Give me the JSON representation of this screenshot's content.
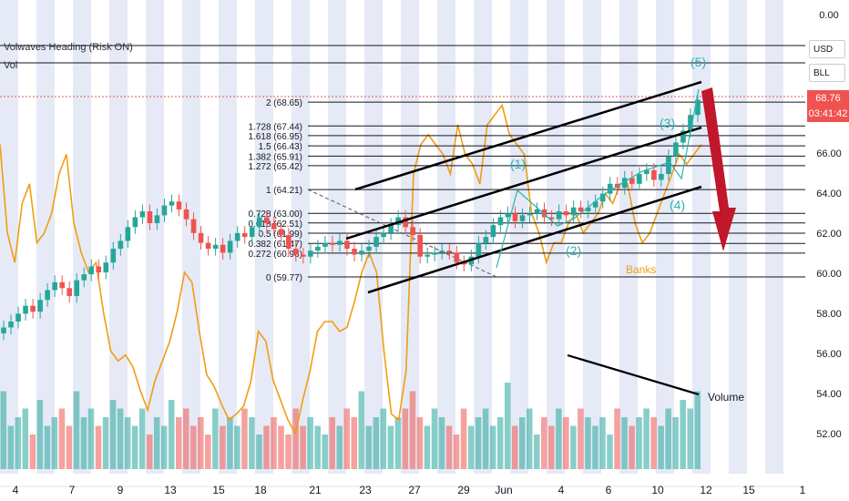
{
  "indicators": {
    "heading": "Volwaves Heading (Risk ON)",
    "vol": "Vol"
  },
  "axis_chips": {
    "currency": "USD",
    "symbol": "BLL"
  },
  "last_price": {
    "price": "68.76",
    "countdown": "03:41:42"
  },
  "colors": {
    "up": "#26a69a",
    "down": "#ef5350",
    "orange": "#f39c12",
    "wave": "#2ab5b0",
    "arrow": "#c0172a",
    "band": "#c7d1ec",
    "bg": "#ffffff"
  },
  "annotations": {
    "banks": "Banks",
    "volume": "Volume",
    "waves": [
      "(1)",
      "(2)",
      "(3)",
      "(4)",
      "(5)"
    ]
  },
  "chart_data": {
    "type": "candlestick",
    "y_ticks": [
      "0.00",
      "66.00",
      "64.00",
      "62.00",
      "60.00",
      "58.00",
      "56.00",
      "54.00",
      "52.00"
    ],
    "x_ticks": [
      "4",
      "7",
      "9",
      "13",
      "15",
      "18",
      "21",
      "23",
      "27",
      "29",
      "Jun",
      "4",
      "6",
      "10",
      "12",
      "15",
      "1"
    ],
    "fib_levels": [
      {
        "label": "2 (68.65)",
        "price": 68.65
      },
      {
        "label": "1.728 (67.44)",
        "price": 67.44
      },
      {
        "label": "1.618 (66.95)",
        "price": 66.95
      },
      {
        "label": "1.5 (66.43)",
        "price": 66.43
      },
      {
        "label": "1.382 (65.91)",
        "price": 65.91
      },
      {
        "label": "1.272 (65.42)",
        "price": 65.42
      },
      {
        "label": "1 (64.21)",
        "price": 64.21
      },
      {
        "label": "0.728 (63.00)",
        "price": 63.0
      },
      {
        "label": "0.618 (62.51)",
        "price": 62.51
      },
      {
        "label": "0.5 (61.99)",
        "price": 61.99
      },
      {
        "label": "0.382 (61.47)",
        "price": 61.47
      },
      {
        "label": "0.272 (60.98)",
        "price": 60.98
      },
      {
        "label": "0 (59.77)",
        "price": 59.77
      }
    ],
    "close": [
      57.2,
      57.5,
      57.9,
      58.3,
      58.0,
      58.6,
      59.1,
      59.5,
      59.2,
      58.8,
      59.6,
      59.9,
      60.3,
      60.0,
      60.5,
      61.2,
      61.6,
      62.3,
      62.8,
      63.1,
      62.5,
      62.9,
      63.4,
      63.6,
      63.2,
      62.7,
      62.0,
      61.5,
      61.2,
      61.4,
      61.0,
      61.6,
      62.0,
      61.8,
      62.3,
      62.8,
      62.5,
      62.2,
      61.9,
      61.2,
      60.9,
      60.8,
      61.1,
      61.3,
      61.5,
      61.4,
      61.6,
      61.2,
      60.9,
      61.1,
      61.3,
      61.8,
      62.0,
      62.4,
      62.8,
      62.3,
      61.9,
      60.8,
      60.9,
      61.0,
      61.1,
      61.0,
      60.5,
      60.4,
      60.8,
      61.5,
      61.8,
      62.4,
      62.8,
      63.0,
      62.6,
      62.9,
      63.0,
      63.2,
      62.8,
      62.7,
      63.1,
      62.9,
      63.3,
      63.1,
      63.3,
      63.6,
      64.0,
      64.5,
      64.3,
      64.8,
      64.5,
      65.0,
      65.2,
      64.7,
      65.0,
      65.9,
      66.6,
      67.2,
      68.0,
      68.76
    ],
    "vol_axis_note": "volume shown as relative heights",
    "volume": [
      0.9,
      0.5,
      0.6,
      0.7,
      0.4,
      0.8,
      0.5,
      0.6,
      0.7,
      0.5,
      0.9,
      0.6,
      0.7,
      0.5,
      0.6,
      0.8,
      0.7,
      0.6,
      0.5,
      0.7,
      0.4,
      0.6,
      0.5,
      0.8,
      0.6,
      0.7,
      0.5,
      0.6,
      0.4,
      0.7,
      0.5,
      0.6,
      0.5,
      0.7,
      0.6,
      0.4,
      0.5,
      0.6,
      0.5,
      0.4,
      0.7,
      0.5,
      0.6,
      0.5,
      0.4,
      0.6,
      0.5,
      0.7,
      0.6,
      0.9,
      0.5,
      0.6,
      0.7,
      0.5,
      0.6,
      0.7,
      0.9,
      0.6,
      0.5,
      0.7,
      0.6,
      0.5,
      0.4,
      0.7,
      0.5,
      0.6,
      0.7,
      0.5,
      0.6,
      1.0,
      0.5,
      0.6,
      0.7,
      0.4,
      0.6,
      0.5,
      0.7,
      0.6,
      0.5,
      0.7,
      0.6,
      0.5,
      0.6,
      0.4,
      0.7,
      0.6,
      0.5,
      0.6,
      0.7,
      0.6,
      0.5,
      0.7,
      0.6,
      0.8,
      0.7,
      0.9
    ],
    "orange_line": [
      66.5,
      62.0,
      60.5,
      63.5,
      64.5,
      61.5,
      62.0,
      63.0,
      65.0,
      66.0,
      62.5,
      61.0,
      60.0,
      60.5,
      58.0,
      56.0,
      55.5,
      55.8,
      55.2,
      54.0,
      53.0,
      54.5,
      55.5,
      56.5,
      58.0,
      60.0,
      59.5,
      57.0,
      54.8,
      54.2,
      53.3,
      52.5,
      52.8,
      53.2,
      54.5,
      57.0,
      56.5,
      54.5,
      53.5,
      52.5,
      51.8,
      53.5,
      55.0,
      57.0,
      57.5,
      57.5,
      57.0,
      57.2,
      58.5,
      60.0,
      61.0,
      60.0,
      56.0,
      52.8,
      52.5,
      55.0,
      65.0,
      66.5,
      67.0,
      66.5,
      66.0,
      65.0,
      67.5,
      66.0,
      65.5,
      64.5,
      67.5,
      68.0,
      68.5,
      67.0,
      66.5,
      66.0,
      63.0,
      62.0,
      60.5,
      61.5,
      61.5,
      62.5,
      63.0,
      62.0,
      62.5,
      63.0,
      64.0,
      63.5,
      64.5,
      64.5,
      62.5,
      61.5,
      62.0,
      63.0,
      64.0,
      65.0,
      66.0,
      65.5,
      66.0,
      66.5
    ]
  }
}
